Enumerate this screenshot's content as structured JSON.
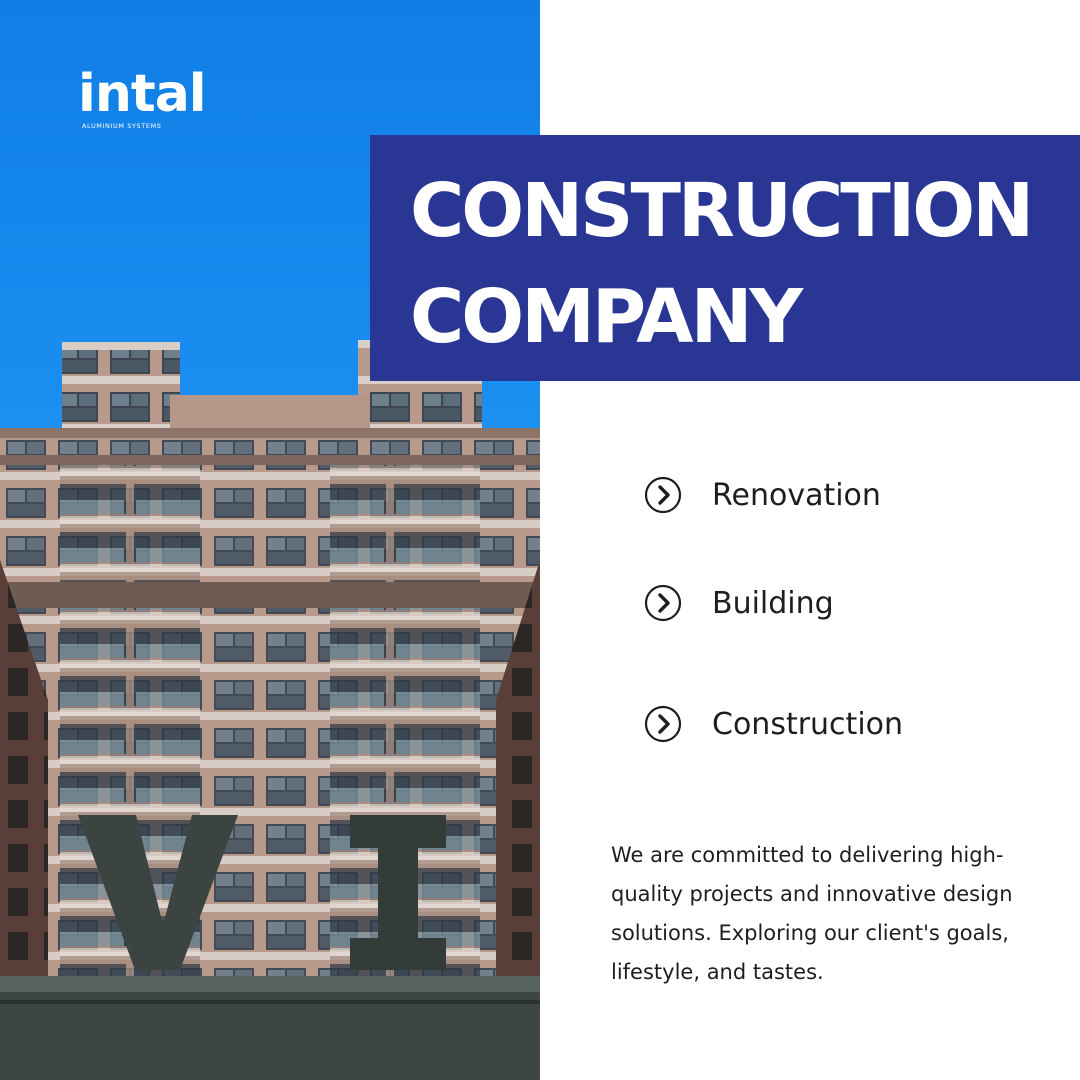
{
  "brand": {
    "logo_word": "intal",
    "logo_tagline": "ALUMINIUM SYSTEMS"
  },
  "headline": {
    "line1": "CONSTRUCTION",
    "line2": "COMPANY"
  },
  "services": [
    {
      "label": "Renovation",
      "icon": "chevron-circle-icon"
    },
    {
      "label": "Building",
      "icon": "chevron-circle-icon"
    },
    {
      "label": "Construction",
      "icon": "chevron-circle-icon"
    }
  ],
  "description": "We are committed to delivering high-quality projects and innovative design solutions. Exploring our client's goals, lifestyle, and tastes.",
  "colors": {
    "title_box": "#2a3694",
    "sky": "#1a8df0",
    "text": "#1e1e1e",
    "background": "#ffffff"
  }
}
